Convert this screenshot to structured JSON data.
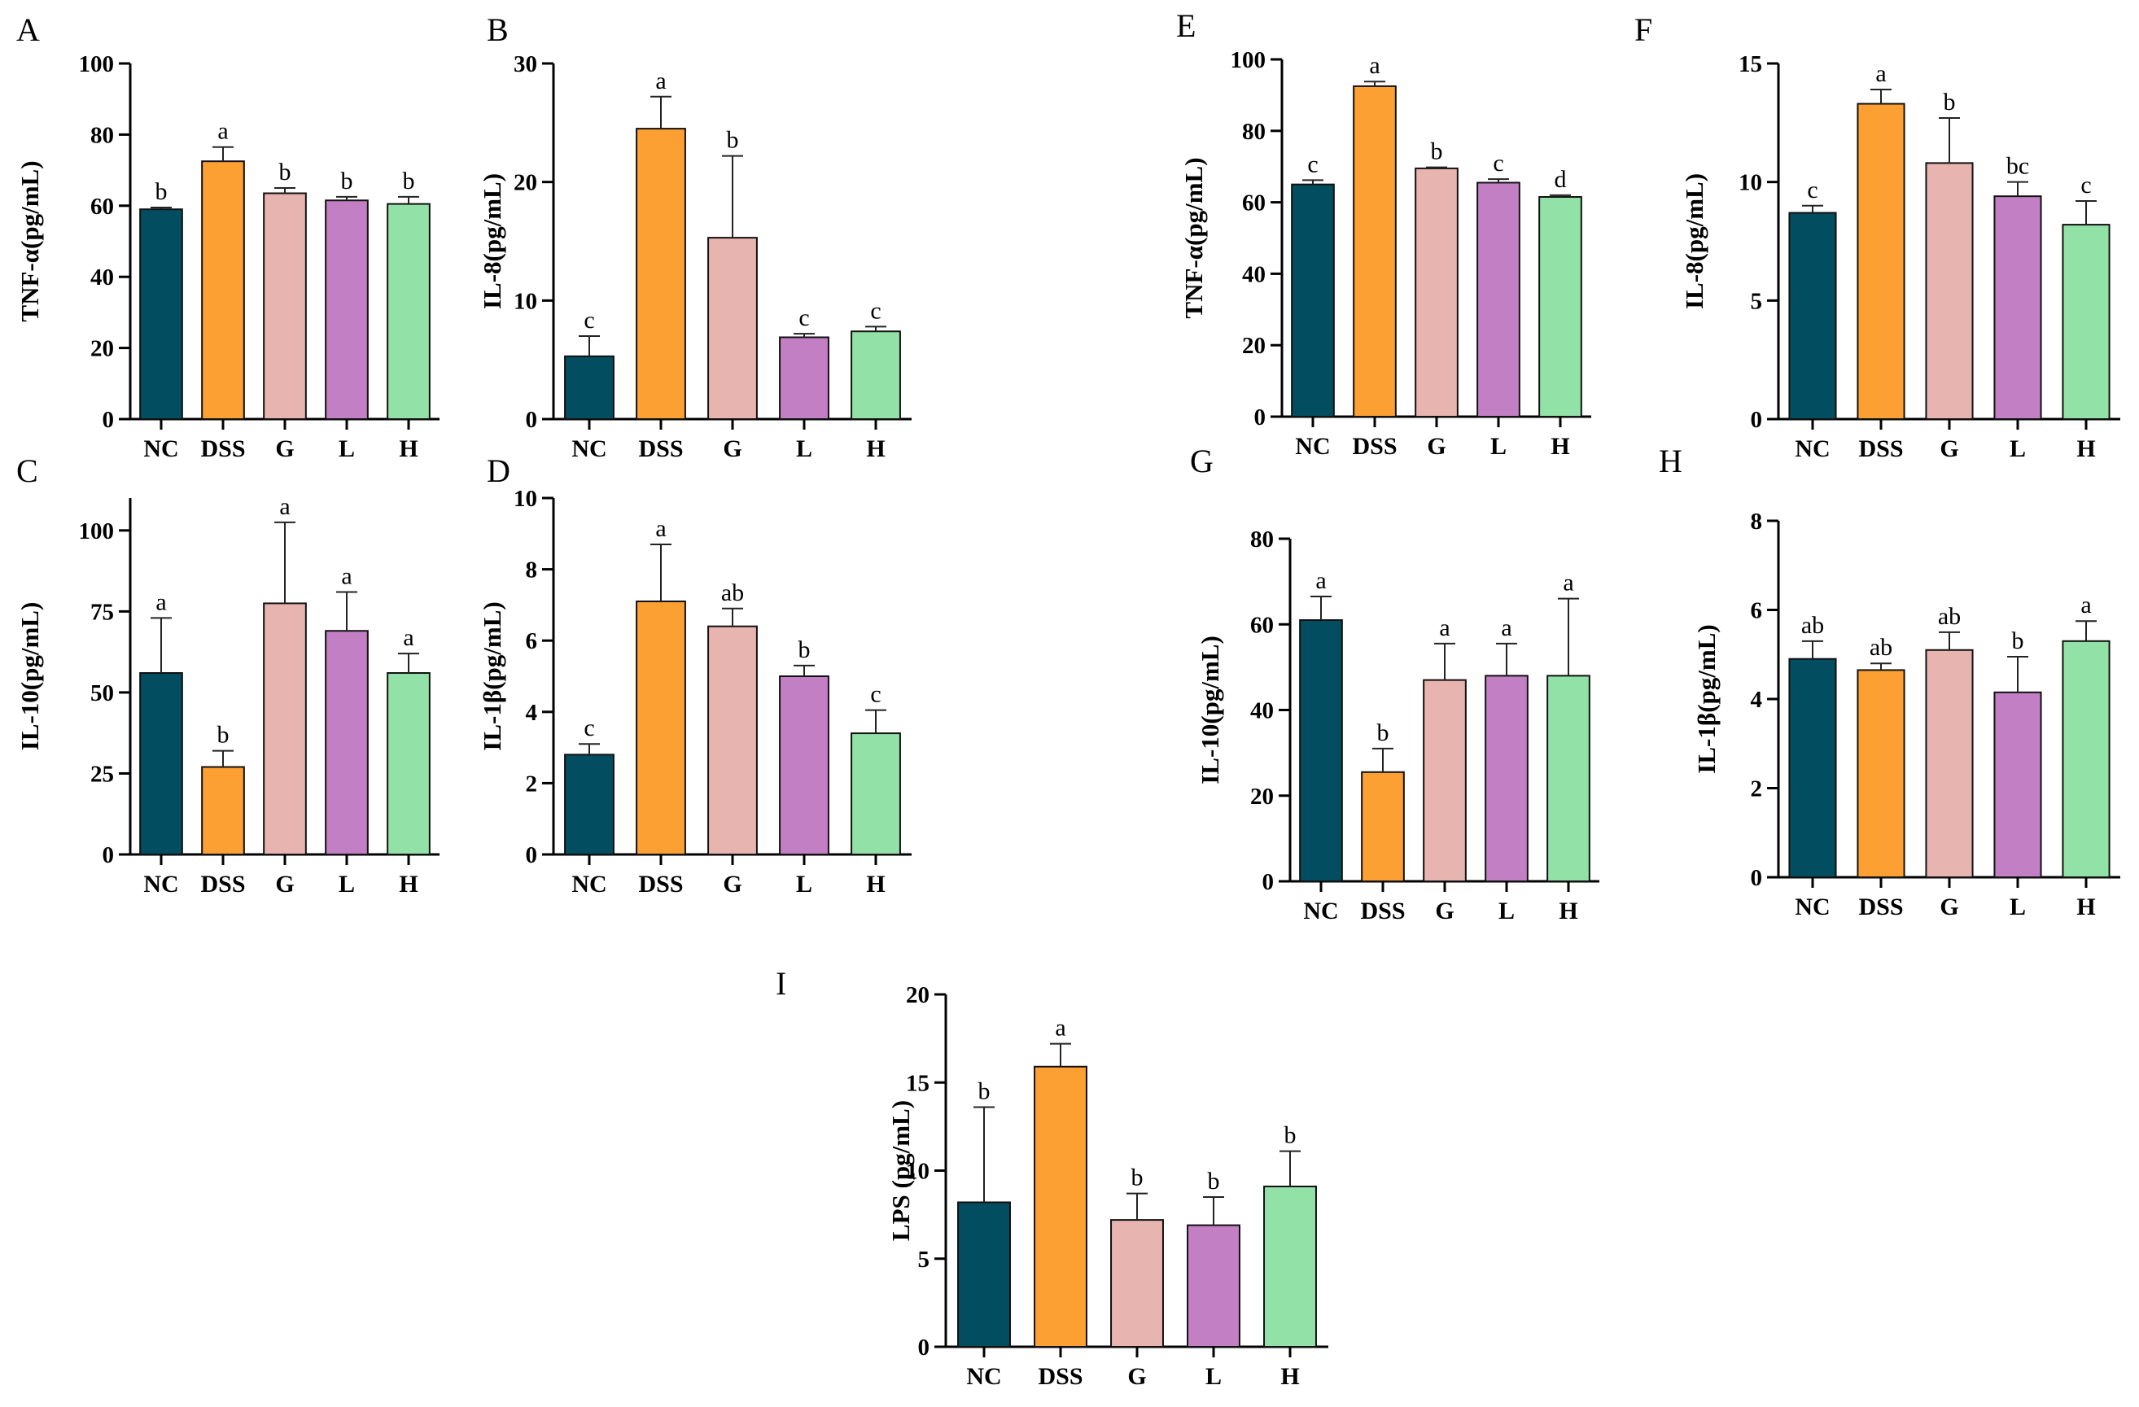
{
  "figure": {
    "colors": [
      "#034d60",
      "#fda033",
      "#e8b4b0",
      "#c37fc3",
      "#92e1a7"
    ],
    "categories": [
      "NC",
      "DSS",
      "G",
      "L",
      "H"
    ]
  },
  "chart_data": [
    {
      "panel": "A",
      "type": "bar",
      "ylabel": "TNF-α(pg/mL)",
      "ylim": [
        0,
        100
      ],
      "yticks": [
        0,
        20,
        40,
        60,
        80,
        100
      ],
      "categories": [
        "NC",
        "DSS",
        "G",
        "L",
        "H"
      ],
      "values": [
        59,
        72.5,
        63.5,
        61.5,
        60.5
      ],
      "errors": [
        0.5,
        4,
        1.5,
        1,
        2
      ],
      "significance": [
        "b",
        "a",
        "b",
        "b",
        "b"
      ]
    },
    {
      "panel": "B",
      "type": "bar",
      "ylabel": "IL-8(pg/mL)",
      "ylim": [
        0,
        30
      ],
      "yticks": [
        0,
        10,
        20,
        30
      ],
      "categories": [
        "NC",
        "DSS",
        "G",
        "L",
        "H"
      ],
      "values": [
        5.3,
        24.5,
        15.3,
        6.9,
        7.4
      ],
      "errors": [
        1.7,
        2.7,
        6.9,
        0.3,
        0.4
      ],
      "significance": [
        "c",
        "a",
        "b",
        "c",
        "c"
      ]
    },
    {
      "panel": "C",
      "type": "bar",
      "ylabel": "IL-10(pg/mL)",
      "ylim": [
        0,
        110
      ],
      "yticks": [
        0,
        25,
        50,
        75,
        100
      ],
      "categories": [
        "NC",
        "DSS",
        "G",
        "L",
        "H"
      ],
      "values": [
        56,
        27,
        77.5,
        69,
        56
      ],
      "errors": [
        17,
        5,
        25,
        12,
        6
      ],
      "significance": [
        "a",
        "b",
        "a",
        "a",
        "a"
      ]
    },
    {
      "panel": "D",
      "type": "bar",
      "ylabel": "IL-1β(pg/mL)",
      "ylim": [
        0,
        10
      ],
      "yticks": [
        0,
        2,
        4,
        6,
        8,
        10
      ],
      "categories": [
        "NC",
        "DSS",
        "G",
        "L",
        "H"
      ],
      "values": [
        2.8,
        7.1,
        6.4,
        5.0,
        3.4
      ],
      "errors": [
        0.3,
        1.6,
        0.5,
        0.3,
        0.65
      ],
      "significance": [
        "c",
        "a",
        "ab",
        "b",
        "c"
      ]
    },
    {
      "panel": "E",
      "type": "bar",
      "ylabel": "TNF-α(pg/mL)",
      "ylim": [
        0,
        100
      ],
      "yticks": [
        0,
        20,
        40,
        60,
        80,
        100
      ],
      "categories": [
        "NC",
        "DSS",
        "G",
        "L",
        "H"
      ],
      "values": [
        65,
        92.5,
        69.5,
        65.5,
        61.5
      ],
      "errors": [
        1.2,
        1.3,
        0.3,
        1,
        0.5
      ],
      "significance": [
        "c",
        "a",
        "b",
        "c",
        "d"
      ]
    },
    {
      "panel": "F",
      "type": "bar",
      "ylabel": "IL-8(pg/mL)",
      "ylim": [
        0,
        15
      ],
      "yticks": [
        0,
        5,
        10,
        15
      ],
      "categories": [
        "NC",
        "DSS",
        "G",
        "L",
        "H"
      ],
      "values": [
        8.7,
        13.3,
        10.8,
        9.4,
        8.2
      ],
      "errors": [
        0.3,
        0.6,
        1.9,
        0.6,
        1.0
      ],
      "significance": [
        "c",
        "a",
        "b",
        "bc",
        "c"
      ]
    },
    {
      "panel": "G",
      "type": "bar",
      "ylabel": "IL-10(pg/mL)",
      "ylim": [
        0,
        80
      ],
      "yticks": [
        0,
        20,
        40,
        60,
        80
      ],
      "categories": [
        "NC",
        "DSS",
        "G",
        "L",
        "H"
      ],
      "values": [
        61,
        25.5,
        47,
        48,
        48
      ],
      "errors": [
        5.5,
        5.5,
        8.5,
        7.5,
        18
      ],
      "significance": [
        "a",
        "b",
        "a",
        "a",
        "a"
      ]
    },
    {
      "panel": "H",
      "type": "bar",
      "ylabel": "IL-1β(pg/mL)",
      "ylim": [
        0,
        8
      ],
      "yticks": [
        0,
        2,
        4,
        6,
        8
      ],
      "categories": [
        "NC",
        "DSS",
        "G",
        "L",
        "H"
      ],
      "values": [
        4.9,
        4.65,
        5.1,
        4.15,
        5.3
      ],
      "errors": [
        0.4,
        0.15,
        0.4,
        0.8,
        0.45
      ],
      "significance": [
        "ab",
        "ab",
        "ab",
        "b",
        "a"
      ]
    },
    {
      "panel": "I",
      "type": "bar",
      "ylabel": "LPS (pg/mL)",
      "ylim": [
        0,
        20
      ],
      "yticks": [
        0,
        5,
        10,
        15,
        20
      ],
      "categories": [
        "NC",
        "DSS",
        "G",
        "L",
        "H"
      ],
      "values": [
        8.2,
        15.9,
        7.2,
        6.9,
        9.1
      ],
      "errors": [
        5.4,
        1.3,
        1.5,
        1.6,
        2.0
      ],
      "significance": [
        "b",
        "a",
        "b",
        "b",
        "b"
      ]
    }
  ]
}
